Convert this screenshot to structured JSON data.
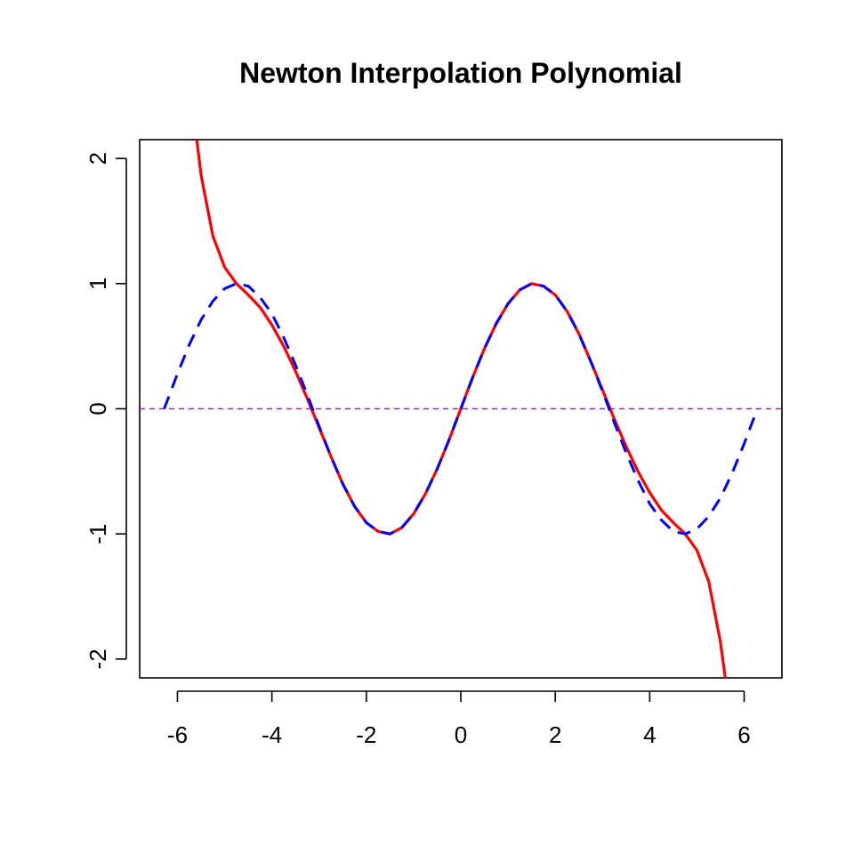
{
  "chart_data": {
    "type": "line",
    "title": "Newton Interpolation Polynomial",
    "xlabel": "",
    "ylabel": "",
    "xlim": [
      -6.8,
      6.8
    ],
    "ylim": [
      -2.15,
      2.15
    ],
    "x_ticks": [
      -6,
      -4,
      -2,
      0,
      2,
      4,
      6
    ],
    "x_tick_labels": [
      "-6",
      "-4",
      "-2",
      "0",
      "2",
      "4",
      "6"
    ],
    "y_ticks": [
      -2,
      -1,
      0,
      1,
      2
    ],
    "y_tick_labels": [
      "-2",
      "-1",
      "0",
      "1",
      "2"
    ],
    "grid": false,
    "legend": "none",
    "series": [
      {
        "id": "newton",
        "color": "#ff0000",
        "style": "solid",
        "x": [
          -5.59,
          -5.5,
          -5.25,
          -5.0,
          -4.75,
          -4.5,
          -4.25,
          -4.0,
          -3.75,
          -3.5,
          -3.25,
          -3.0,
          -2.75,
          -2.5,
          -2.25,
          -2.0,
          -1.75,
          -1.5,
          -1.25,
          -1.0,
          -0.75,
          -0.5,
          -0.25,
          0.0,
          0.25,
          0.5,
          0.75,
          1.0,
          1.25,
          1.5,
          1.75,
          2.0,
          2.25,
          2.5,
          2.75,
          3.0,
          3.25,
          3.5,
          3.75,
          4.0,
          4.25,
          4.5,
          4.75,
          5.0,
          5.25,
          5.5,
          5.6
        ],
        "y": [
          2.15,
          1.87,
          1.38,
          1.13,
          1.0,
          0.91,
          0.81,
          0.67,
          0.5,
          0.3,
          0.08,
          -0.15,
          -0.38,
          -0.6,
          -0.78,
          -0.91,
          -0.98,
          -1.0,
          -0.95,
          -0.84,
          -0.68,
          -0.48,
          -0.25,
          0.0,
          0.25,
          0.48,
          0.68,
          0.84,
          0.95,
          1.0,
          0.98,
          0.91,
          0.78,
          0.6,
          0.38,
          0.15,
          -0.08,
          -0.3,
          -0.5,
          -0.67,
          -0.81,
          -0.91,
          -1.0,
          -1.13,
          -1.38,
          -1.87,
          -2.15
        ]
      },
      {
        "id": "sin",
        "color": "#0000ff",
        "style": "dashed",
        "x": [
          -6.28,
          -6.0,
          -5.75,
          -5.5,
          -5.25,
          -5.0,
          -4.75,
          -4.5,
          -4.25,
          -4.0,
          -3.75,
          -3.5,
          -3.25,
          -3.0,
          -2.75,
          -2.5,
          -2.25,
          -2.0,
          -1.75,
          -1.5,
          -1.25,
          -1.0,
          -0.75,
          -0.5,
          -0.25,
          0.0,
          0.25,
          0.5,
          0.75,
          1.0,
          1.25,
          1.5,
          1.75,
          2.0,
          2.25,
          2.5,
          2.75,
          3.0,
          3.25,
          3.5,
          3.75,
          4.0,
          4.25,
          4.5,
          4.75,
          5.0,
          5.25,
          5.5,
          5.75,
          6.0,
          6.28
        ],
        "y": [
          0.0,
          0.28,
          0.51,
          0.71,
          0.86,
          0.96,
          1.0,
          0.98,
          0.89,
          0.76,
          0.57,
          0.35,
          0.11,
          -0.14,
          -0.38,
          -0.6,
          -0.78,
          -0.91,
          -0.98,
          -1.0,
          -0.95,
          -0.84,
          -0.68,
          -0.48,
          -0.25,
          0.0,
          0.25,
          0.48,
          0.68,
          0.84,
          0.95,
          1.0,
          0.98,
          0.91,
          0.78,
          0.6,
          0.38,
          0.14,
          -0.11,
          -0.35,
          -0.57,
          -0.76,
          -0.89,
          -0.98,
          -1.0,
          -0.96,
          -0.86,
          -0.71,
          -0.51,
          -0.28,
          0.0
        ]
      }
    ],
    "reference_lines": [
      {
        "id": "zero-line",
        "y": 0,
        "color": "#a020f0",
        "style": "dashed"
      }
    ]
  }
}
